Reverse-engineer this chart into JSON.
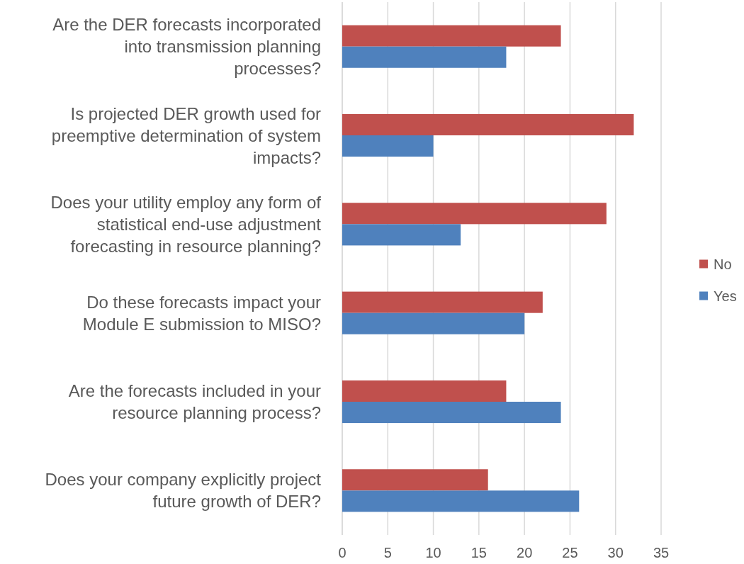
{
  "chart_data": {
    "type": "bar",
    "orientation": "horizontal",
    "categories": [
      "Are the DER forecasts incorporated into transmission planning processes?",
      "Is projected DER growth used for preemptive determination of system impacts?",
      "Does your utility employ any form of statistical end-use adjustment forecasting in resource planning?",
      "Do these forecasts impact your Module E submission to MISO?",
      "Are the forecasts included in your resource planning process?",
      "Does your company explicitly project future growth of DER?"
    ],
    "series": [
      {
        "name": "No",
        "color": "#c0504d",
        "values": [
          24,
          32,
          29,
          22,
          18,
          16
        ]
      },
      {
        "name": "Yes",
        "color": "#4f81bd",
        "values": [
          18,
          10,
          13,
          20,
          24,
          26
        ]
      }
    ],
    "xlim": [
      0,
      35
    ],
    "xticks": [
      0,
      5,
      10,
      15,
      20,
      25,
      30,
      35
    ],
    "grid": "x",
    "legend": "right"
  }
}
